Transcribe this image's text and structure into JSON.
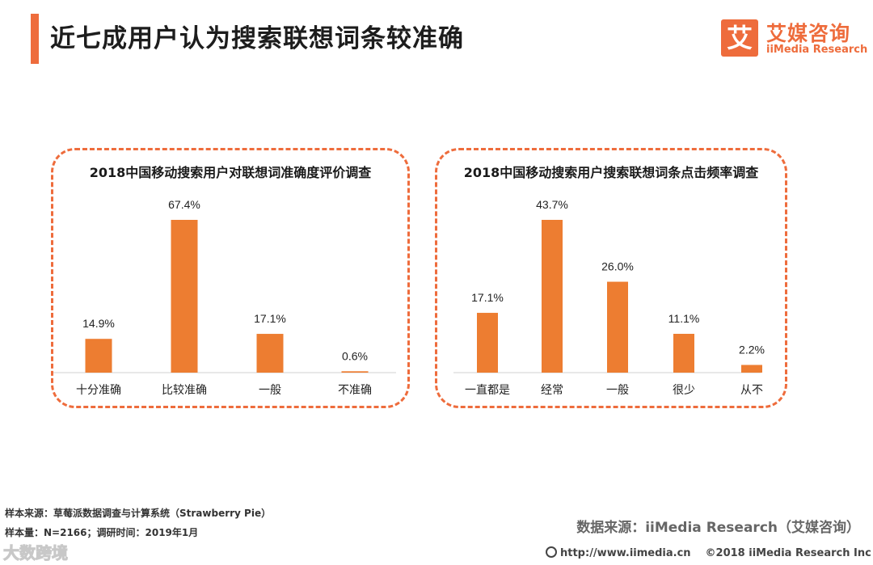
{
  "page_title": "近七成用户认为搜索联想词条较准确",
  "logo": {
    "mark": "艾",
    "cn": "艾媒咨询",
    "en": "iiMedia Research"
  },
  "accent_color": "#ee6c3c",
  "bar_color": "#ed7d31",
  "chart_data": [
    {
      "type": "bar",
      "title": "2018中国移动搜索用户对联想词准确度评价调查",
      "categories": [
        "十分准确",
        "比较准确",
        "一般",
        "不准确"
      ],
      "values": [
        14.9,
        67.4,
        17.1,
        0.6
      ],
      "value_labels": [
        "14.9%",
        "67.4%",
        "17.1%",
        "0.6%"
      ],
      "unit": "%",
      "ylim": [
        0,
        67.4
      ]
    },
    {
      "type": "bar",
      "title": "2018中国移动搜索用户搜索联想词条点击频率调查",
      "categories": [
        "一直都是",
        "经常",
        "一般",
        "很少",
        "从不"
      ],
      "values": [
        17.1,
        43.7,
        26.0,
        11.1,
        2.2
      ],
      "value_labels": [
        "17.1%",
        "43.7%",
        "26.0%",
        "11.1%",
        "2.2%"
      ],
      "unit": "%",
      "ylim": [
        0,
        43.7
      ]
    }
  ],
  "footnotes": {
    "sample_source": "样本来源：草莓派数据调查与计算系统（Strawberry Pie）",
    "sample_size": "样本量：N=2166；调研时间：2019年1月"
  },
  "data_source": "数据来源：iiMedia Research（艾媒咨询）",
  "watermark": "大数跨境",
  "footer": {
    "url": "http://www.iimedia.cn",
    "copyright": "©2018  iiMedia Research  Inc"
  }
}
